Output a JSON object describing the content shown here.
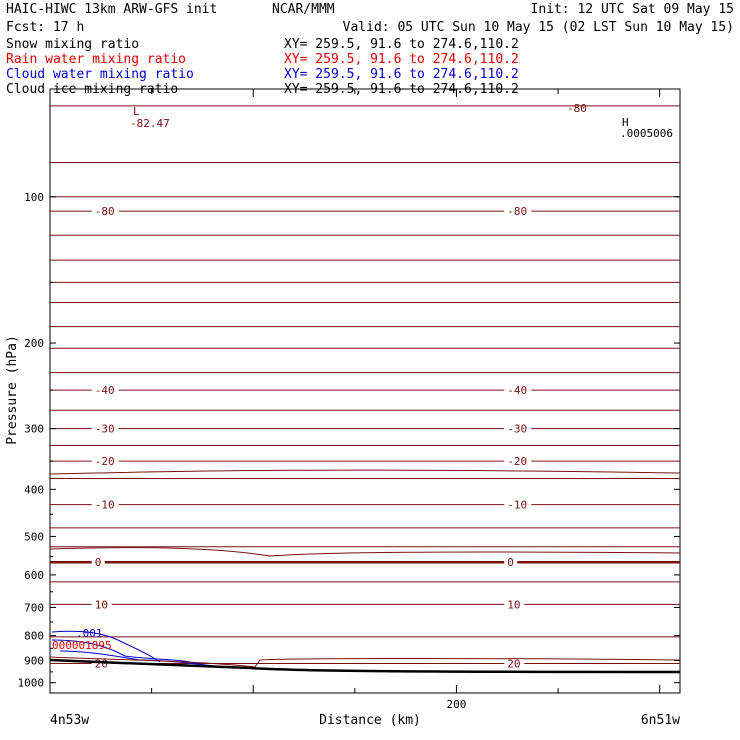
{
  "header": {
    "left1": "HAIC-HIWC 13km ARW-GFS init",
    "center1": "NCAR/MMM",
    "right1": "Init: 12 UTC Sat 09 May 15",
    "left2": "Fcst:    17 h",
    "right2": "Valid: 05 UTC Sun 10 May 15 (02 LST Sun 10 May 15)"
  },
  "legend": [
    {
      "label": "Snow mixing ratio",
      "xy": "XY= 259.5, 91.6 to 274.6,110.2",
      "color": "#000000"
    },
    {
      "label": "Rain water mixing ratio",
      "xy": "XY= 259.5, 91.6 to 274.6,110.2",
      "color": "#e00000"
    },
    {
      "label": "Cloud water mixing ratio",
      "xy": "XY= 259.5, 91.6 to 274.6,110.2",
      "color": "#0000c8"
    },
    {
      "label": "Cloud ice mixing ratio",
      "xy": "XY= 259.5, 91.6 to 274.6,110.2",
      "color": "#000000"
    }
  ],
  "colors": {
    "temperature": "#7a1010",
    "terrain": "#000000",
    "cloud_water": "#0000c8",
    "rain": "#e00000"
  },
  "chart_data": {
    "type": "contour",
    "ylabel": "Pressure (hPa)",
    "xlabel": "Distance (km)",
    "x_left_label": "4n53w",
    "x_right_label": "6n51w",
    "y_ticks": [
      "100",
      "200",
      "300",
      "400",
      "500",
      "600",
      "700",
      "800",
      "900",
      "1000"
    ],
    "x_ticks": [
      "200"
    ],
    "ylim": [
      1050,
      60
    ],
    "xlim": [
      0,
      310
    ],
    "temperature_contours": [
      {
        "pressure": 107,
        "label": "-80"
      },
      {
        "pressure": 250,
        "label": "-40"
      },
      {
        "pressure": 300,
        "label": "-30"
      },
      {
        "pressure": 350,
        "label": "-20"
      },
      {
        "pressure": 430,
        "label": "-10"
      },
      {
        "pressure": 565,
        "label": "0"
      },
      {
        "pressure": 690,
        "label": "10"
      },
      {
        "pressure": 913,
        "label": "20"
      }
    ],
    "annotations": {
      "low_label": "L",
      "low_value": "-82.47",
      "high_label": "H",
      "high_value": ".0005006",
      "cloud_water_label": ".001",
      "rain_value": "000001895"
    }
  }
}
